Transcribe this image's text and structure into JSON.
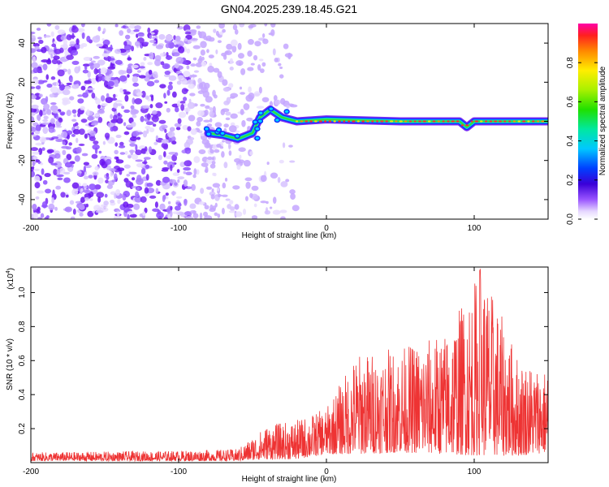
{
  "figure": {
    "title": "GN04.2025.239.18.45.G21"
  },
  "chart_data": [
    {
      "type": "heatmap",
      "title": "GN04.2025.239.18.45.G21",
      "xlabel": "Height of straight line (km)",
      "ylabel": "Frequency (Hz)",
      "xlim": [
        -200,
        150
      ],
      "ylim": [
        -50,
        50
      ],
      "xticks": [
        -200,
        -100,
        0,
        100
      ],
      "yticks": [
        -40,
        -20,
        0,
        20,
        40
      ],
      "colorbar": {
        "label": "Normalized spectral amplitude",
        "range": [
          0,
          1
        ],
        "ticks": [
          "0.0",
          "0.2",
          "0.4",
          "0.6",
          "0.8"
        ]
      },
      "features": {
        "noise_region_x": [
          -200,
          -20
        ],
        "signal_track": [
          {
            "x": -80,
            "f": -6
          },
          {
            "x": -70,
            "f": -7
          },
          {
            "x": -60,
            "f": -9
          },
          {
            "x": -50,
            "f": -6
          },
          {
            "x": -45,
            "f": 2
          },
          {
            "x": -38,
            "f": 6
          },
          {
            "x": -30,
            "f": 2
          },
          {
            "x": -20,
            "f": 0
          },
          {
            "x": 0,
            "f": 1
          },
          {
            "x": 50,
            "f": 0
          },
          {
            "x": 90,
            "f": 0
          },
          {
            "x": 95,
            "f": -3
          },
          {
            "x": 100,
            "f": 0
          },
          {
            "x": 150,
            "f": 0
          }
        ]
      }
    },
    {
      "type": "line",
      "xlabel": "Height of straight line (km)",
      "ylabel": "SNR (10 * v/v)",
      "scale_label": "(x10",
      "scale_exponent": "4",
      "scale_close": ")",
      "xlim": [
        -200,
        150
      ],
      "ylim": [
        0,
        1.15
      ],
      "xticks": [
        -200,
        -100,
        0,
        100
      ],
      "yticks": [
        "0.2",
        "0.4",
        "0.6",
        "0.8",
        "1.0"
      ],
      "color": "#ee3333",
      "envelope": [
        {
          "x": -200,
          "lo": 0.01,
          "hi": 0.06
        },
        {
          "x": -100,
          "lo": 0.01,
          "hi": 0.07
        },
        {
          "x": -60,
          "lo": 0.01,
          "hi": 0.08
        },
        {
          "x": -40,
          "lo": 0.02,
          "hi": 0.22
        },
        {
          "x": -20,
          "lo": 0.02,
          "hi": 0.25
        },
        {
          "x": 0,
          "lo": 0.05,
          "hi": 0.32
        },
        {
          "x": 20,
          "lo": 0.05,
          "hi": 0.64
        },
        {
          "x": 50,
          "lo": 0.06,
          "hi": 0.68
        },
        {
          "x": 80,
          "lo": 0.05,
          "hi": 0.76
        },
        {
          "x": 105,
          "lo": 0.04,
          "hi": 1.15
        },
        {
          "x": 130,
          "lo": 0.04,
          "hi": 0.62
        },
        {
          "x": 150,
          "lo": 0.06,
          "hi": 0.55
        }
      ]
    }
  ]
}
